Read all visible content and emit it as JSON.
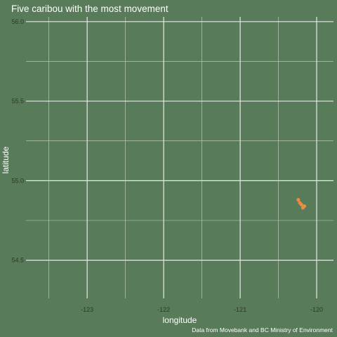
{
  "chart_data": {
    "type": "line",
    "title": "Five caribou with the most movement",
    "x_label": "longitude",
    "y_label": "latitude",
    "caption": "Data from Movebank and BC Ministry of Environment",
    "background": "#587b59",
    "grid": true,
    "xlim": [
      -123.8,
      -119.78
    ],
    "ylim": [
      54.26,
      56.03
    ],
    "xticks": [
      -123,
      -122,
      -121,
      -120
    ],
    "yticks": [
      {
        "value": 54.5,
        "label": "54.5"
      },
      {
        "value": 55,
        "label": "55.0"
      },
      {
        "value": 55.5,
        "label": "55.5"
      },
      {
        "value": 56,
        "label": "56.0"
      }
    ],
    "xminor": [
      -123.5,
      -122.5,
      -121.5,
      -120.5
    ],
    "yminor": [
      54.25,
      54.75,
      55.25,
      55.75
    ],
    "series": [
      {
        "color": "#f28a3c",
        "x": [
          -120.24,
          -120.22,
          -120.2,
          -120.16,
          -120.18
        ],
        "values": [
          54.88,
          54.86,
          54.85,
          54.84,
          54.83
        ]
      }
    ]
  }
}
